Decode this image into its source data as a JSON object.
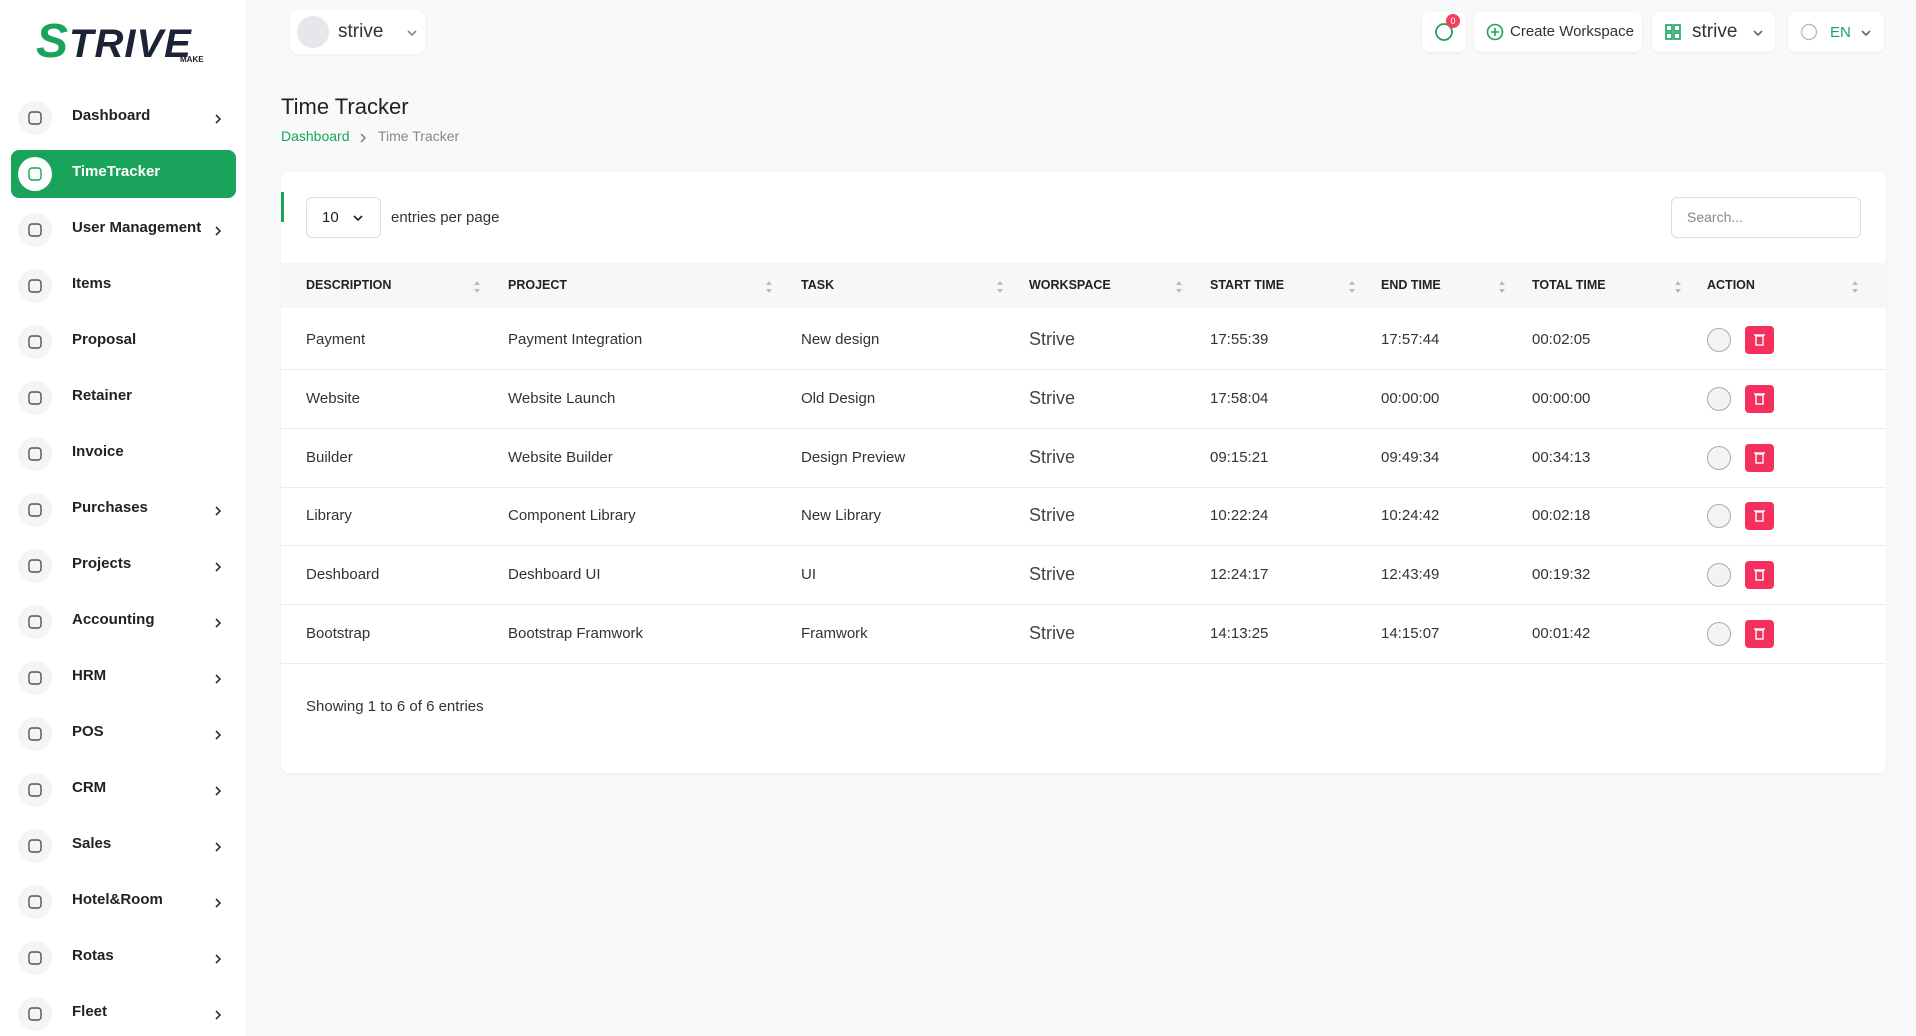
{
  "logo": {
    "text": "STRIVE",
    "tagline": "MAKE"
  },
  "sidebar": [
    {
      "label": "Dashboard",
      "expandable": true
    },
    {
      "label": "TimeTracker",
      "active": true
    },
    {
      "label": "User Management",
      "expandable": true
    },
    {
      "label": "Items"
    },
    {
      "label": "Proposal"
    },
    {
      "label": "Retainer"
    },
    {
      "label": "Invoice"
    },
    {
      "label": "Purchases",
      "expandable": true
    },
    {
      "label": "Projects",
      "expandable": true
    },
    {
      "label": "Accounting",
      "expandable": true
    },
    {
      "label": "HRM",
      "expandable": true
    },
    {
      "label": "POS",
      "expandable": true
    },
    {
      "label": "CRM",
      "expandable": true
    },
    {
      "label": "Sales",
      "expandable": true
    },
    {
      "label": "Hotel&Room",
      "expandable": true
    },
    {
      "label": "Rotas",
      "expandable": true
    },
    {
      "label": "Fleet",
      "expandable": true
    }
  ],
  "header": {
    "user": "strive",
    "notifications": "0",
    "create_workspace": "Create Workspace",
    "workspace": "strive",
    "language": "EN"
  },
  "page": {
    "title": "Time Tracker",
    "breadcrumb": [
      "Dashboard",
      "Time Tracker"
    ]
  },
  "table": {
    "page_size": "10",
    "page_size_label": "entries per page",
    "search_placeholder": "Search...",
    "columns": [
      "DESCRIPTION",
      "PROJECT",
      "TASK",
      "WORKSPACE",
      "START TIME",
      "END TIME",
      "TOTAL TIME",
      "ACTION"
    ],
    "rows": [
      [
        "Payment",
        "Payment Integration",
        "New design",
        "Strive",
        "17:55:39",
        "17:57:44",
        "00:02:05"
      ],
      [
        "Website",
        "Website Launch",
        "Old Design",
        "Strive",
        "17:58:04",
        "00:00:00",
        "00:00:00"
      ],
      [
        "Builder",
        "Website Builder",
        "Design Preview",
        "Strive",
        "09:15:21",
        "09:49:34",
        "00:34:13"
      ],
      [
        "Library",
        "Component Library",
        "New Library",
        "Strive",
        "10:22:24",
        "10:24:42",
        "00:02:18"
      ],
      [
        "Deshboard",
        "Deshboard UI",
        "UI",
        "Strive",
        "12:24:17",
        "12:43:49",
        "00:19:32"
      ],
      [
        "Bootstrap",
        "Bootstrap Framwork",
        "Framwork",
        "Strive",
        "14:13:25",
        "14:15:07",
        "00:01:42"
      ]
    ],
    "footer": "Showing 1 to 6 of 6 entries"
  }
}
